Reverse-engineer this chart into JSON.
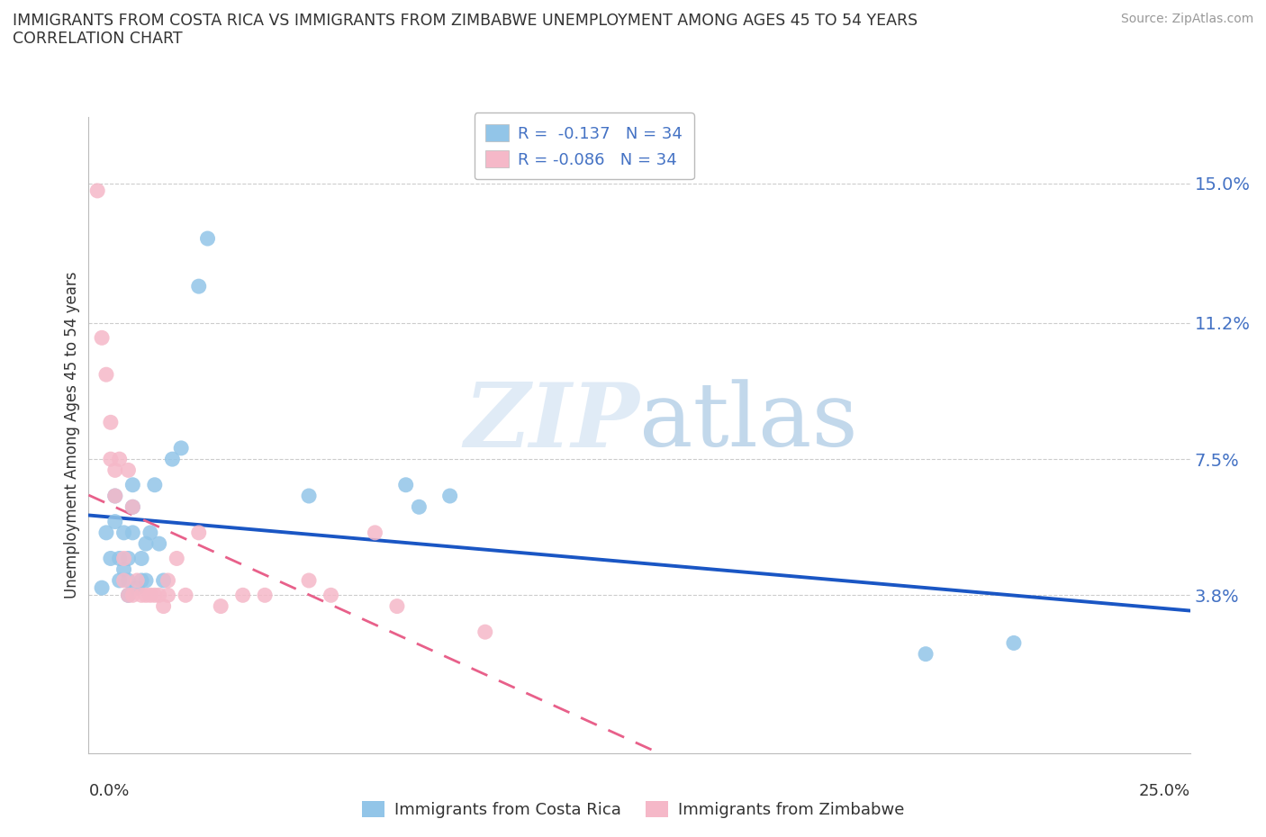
{
  "title_line1": "IMMIGRANTS FROM COSTA RICA VS IMMIGRANTS FROM ZIMBABWE UNEMPLOYMENT AMONG AGES 45 TO 54 YEARS",
  "title_line2": "CORRELATION CHART",
  "source": "Source: ZipAtlas.com",
  "ylabel": "Unemployment Among Ages 45 to 54 years",
  "ytick_labels": [
    "15.0%",
    "11.2%",
    "7.5%",
    "3.8%"
  ],
  "ytick_values": [
    0.15,
    0.112,
    0.075,
    0.038
  ],
  "xmin": 0.0,
  "xmax": 0.25,
  "ymin": -0.005,
  "ymax": 0.168,
  "r_costa_rica": -0.137,
  "n_costa_rica": 34,
  "r_zimbabwe": -0.086,
  "n_zimbabwe": 34,
  "color_costa_rica": "#92C5E8",
  "color_zimbabwe": "#F5B8C8",
  "color_line_costa_rica": "#1A56C4",
  "color_line_zimbabwe": "#E8608A",
  "legend_label_cr": "Immigrants from Costa Rica",
  "legend_label_zw": "Immigrants from Zimbabwe",
  "watermark_zip": "ZIP",
  "watermark_atlas": "atlas",
  "costa_rica_x": [
    0.003,
    0.004,
    0.005,
    0.006,
    0.006,
    0.007,
    0.007,
    0.008,
    0.008,
    0.009,
    0.009,
    0.009,
    0.01,
    0.01,
    0.01,
    0.011,
    0.012,
    0.012,
    0.013,
    0.013,
    0.014,
    0.015,
    0.016,
    0.017,
    0.019,
    0.021,
    0.025,
    0.027,
    0.05,
    0.072,
    0.075,
    0.082,
    0.19,
    0.21
  ],
  "costa_rica_y": [
    0.04,
    0.055,
    0.048,
    0.065,
    0.058,
    0.048,
    0.042,
    0.055,
    0.045,
    0.048,
    0.042,
    0.038,
    0.068,
    0.062,
    0.055,
    0.04,
    0.048,
    0.042,
    0.052,
    0.042,
    0.055,
    0.068,
    0.052,
    0.042,
    0.075,
    0.078,
    0.122,
    0.135,
    0.065,
    0.068,
    0.062,
    0.065,
    0.022,
    0.025
  ],
  "zimbabwe_x": [
    0.002,
    0.003,
    0.004,
    0.005,
    0.005,
    0.006,
    0.006,
    0.007,
    0.008,
    0.008,
    0.009,
    0.009,
    0.01,
    0.01,
    0.011,
    0.012,
    0.013,
    0.014,
    0.015,
    0.016,
    0.017,
    0.018,
    0.018,
    0.02,
    0.022,
    0.025,
    0.03,
    0.035,
    0.04,
    0.05,
    0.055,
    0.065,
    0.07,
    0.09
  ],
  "zimbabwe_y": [
    0.148,
    0.108,
    0.098,
    0.085,
    0.075,
    0.072,
    0.065,
    0.075,
    0.048,
    0.042,
    0.072,
    0.038,
    0.062,
    0.038,
    0.042,
    0.038,
    0.038,
    0.038,
    0.038,
    0.038,
    0.035,
    0.042,
    0.038,
    0.048,
    0.038,
    0.055,
    0.035,
    0.038,
    0.038,
    0.042,
    0.038,
    0.055,
    0.035,
    0.028
  ]
}
